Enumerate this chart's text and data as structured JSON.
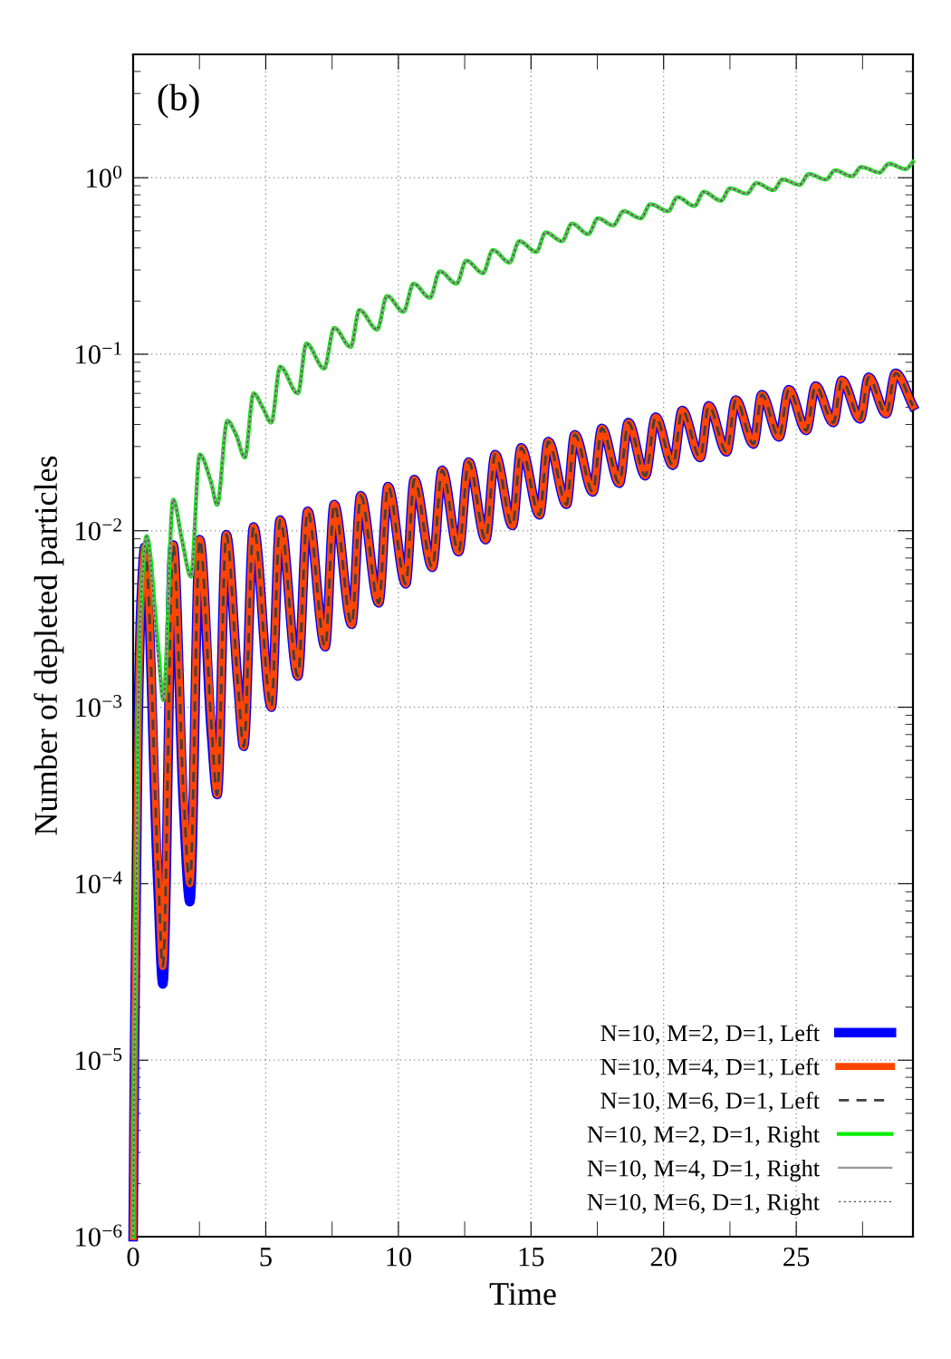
{
  "chart_data": {
    "type": "line",
    "xlabel": "Time",
    "ylabel": "Number of depleted particles",
    "annotations": [
      "(b)"
    ],
    "xlim": [
      0,
      29.4
    ],
    "xticks": [
      0,
      5,
      10,
      15,
      20,
      25
    ],
    "ylim": [
      1e-06,
      5
    ],
    "yticks": [
      {
        "value": 1e-06,
        "label": "10$^{−6}$"
      },
      {
        "value": 1e-05,
        "label": "10$^{−5}$"
      },
      {
        "value": 0.0001,
        "label": "10$^{−4}$"
      },
      {
        "value": 0.001,
        "label": "10$^{−3}$"
      },
      {
        "value": 0.01,
        "label": "10$^{−2}$"
      },
      {
        "value": 0.1,
        "label": "10$^{−1}$"
      },
      {
        "value": 1,
        "label": "10$^{0}$"
      }
    ],
    "log": "y",
    "grid": true,
    "legend": "bottom right",
    "line_style": "solid",
    "series": [
      {
        "name": "N=10, M=2, D=1, Left",
        "color": "#0000ff",
        "x": [
          0,
          0.05,
          0.12,
          0.2,
          0.3,
          0.44,
          0.93,
          1.12,
          1.51,
          1.9,
          2.14,
          2.51,
          2.95,
          3.17,
          3.51,
          3.95,
          4.17,
          4.54,
          5.21,
          5.54,
          6.21,
          6.58,
          7.24,
          7.58,
          8.24,
          8.58,
          9.26,
          9.61,
          10.28,
          10.6,
          11.28,
          11.65,
          12.27,
          12.65,
          13.29,
          13.65,
          14.3,
          14.63,
          15.32,
          15.65,
          16.34,
          16.65,
          17.33,
          17.67,
          18.33,
          18.67,
          19.31,
          19.7,
          20.35,
          20.7,
          21.38,
          21.7,
          22.37,
          22.72,
          23.39,
          23.7,
          24.35,
          24.72,
          25.38,
          25.73,
          26.4,
          26.72,
          27.41,
          27.73,
          28.39,
          28.74,
          29.4
        ],
        "values": [
          1e-06,
          1e-05,
          0.0001,
          0.001,
          0.004,
          0.0081,
          0.0001,
          2.7e-05,
          0.0083,
          0.00027,
          7.9e-05,
          0.0089,
          0.00071,
          0.00032,
          0.0095,
          0.00135,
          0.0006,
          0.0105,
          0.001,
          0.0115,
          0.0015,
          0.0129,
          0.0022,
          0.0141,
          0.00295,
          0.0158,
          0.0039,
          0.0178,
          0.005,
          0.0195,
          0.0062,
          0.022,
          0.0076,
          0.0245,
          0.0089,
          0.027,
          0.0107,
          0.0295,
          0.0123,
          0.032,
          0.0141,
          0.035,
          0.0166,
          0.038,
          0.0186,
          0.041,
          0.0205,
          0.044,
          0.0235,
          0.048,
          0.026,
          0.051,
          0.028,
          0.055,
          0.031,
          0.059,
          0.034,
          0.063,
          0.037,
          0.066,
          0.041,
          0.071,
          0.043,
          0.074,
          0.046,
          0.078,
          0.051
        ]
      },
      {
        "name": "N=10, M=4, D=1, Left",
        "color": "#ff4500",
        "x": [
          0,
          0.05,
          0.12,
          0.2,
          0.3,
          0.44,
          0.93,
          1.12,
          1.51,
          1.9,
          2.14,
          2.51,
          2.95,
          3.17,
          3.51,
          3.95,
          4.17,
          4.54,
          5.21,
          5.54,
          6.21,
          6.58,
          7.24,
          7.58,
          8.24,
          8.58,
          9.26,
          9.61,
          10.28,
          10.6,
          11.28,
          11.65,
          12.27,
          12.65,
          13.29,
          13.65,
          14.3,
          14.63,
          15.32,
          15.65,
          16.34,
          16.65,
          17.33,
          17.67,
          18.33,
          18.67,
          19.31,
          19.7,
          20.35,
          20.7,
          21.38,
          21.7,
          22.37,
          22.72,
          23.39,
          23.7,
          24.35,
          24.72,
          25.38,
          25.73,
          26.4,
          26.72,
          27.41,
          27.73,
          28.39,
          28.74,
          29.4
        ],
        "values": [
          1e-06,
          1e-05,
          0.0001,
          0.001,
          0.004,
          0.0081,
          0.00013,
          3.4e-05,
          0.0083,
          0.00032,
          0.0001,
          0.0089,
          0.00079,
          0.00032,
          0.0095,
          0.00135,
          0.0006,
          0.0105,
          0.001,
          0.0115,
          0.0015,
          0.0129,
          0.0022,
          0.0141,
          0.00295,
          0.0158,
          0.0039,
          0.0178,
          0.005,
          0.0195,
          0.0062,
          0.022,
          0.0076,
          0.0245,
          0.0089,
          0.027,
          0.0107,
          0.0295,
          0.0123,
          0.032,
          0.0141,
          0.035,
          0.0166,
          0.038,
          0.0186,
          0.041,
          0.0205,
          0.044,
          0.0235,
          0.048,
          0.026,
          0.051,
          0.028,
          0.055,
          0.031,
          0.059,
          0.034,
          0.063,
          0.037,
          0.066,
          0.041,
          0.071,
          0.043,
          0.074,
          0.046,
          0.078,
          0.051
        ]
      },
      {
        "name": "N=10, M=6, D=1, Left",
        "color": "#404040",
        "line_style": "dashed",
        "x": [
          0,
          0.05,
          0.12,
          0.2,
          0.3,
          0.44,
          0.93,
          1.12,
          1.51,
          1.9,
          2.14,
          2.51,
          2.95,
          3.17,
          3.51,
          3.95,
          4.17,
          4.54,
          5.21,
          5.54,
          6.21,
          6.58,
          7.24,
          7.58,
          8.24,
          8.58,
          9.26,
          9.61,
          10.28,
          10.6,
          11.28,
          11.65,
          12.27,
          12.65,
          13.29,
          13.65,
          14.3,
          14.63,
          15.32,
          15.65,
          16.34,
          16.65,
          17.33,
          17.67,
          18.33,
          18.67,
          19.31,
          19.7,
          20.35,
          20.7,
          21.38,
          21.7,
          22.37,
          22.72,
          23.39,
          23.7,
          24.35,
          24.72,
          25.38,
          25.73,
          26.4,
          26.72,
          27.41,
          27.73,
          28.39,
          28.74,
          29.4
        ],
        "values": [
          1e-06,
          1e-05,
          0.0001,
          0.001,
          0.004,
          0.0081,
          0.00013,
          3.4e-05,
          0.0083,
          0.00032,
          0.0001,
          0.0089,
          0.00079,
          0.00032,
          0.0095,
          0.00135,
          0.0006,
          0.0105,
          0.001,
          0.0115,
          0.0015,
          0.0129,
          0.0022,
          0.0141,
          0.00295,
          0.0158,
          0.0039,
          0.0178,
          0.005,
          0.0195,
          0.0062,
          0.022,
          0.0076,
          0.0245,
          0.0089,
          0.027,
          0.0107,
          0.0295,
          0.0123,
          0.032,
          0.0141,
          0.035,
          0.0166,
          0.038,
          0.0186,
          0.041,
          0.0205,
          0.044,
          0.0235,
          0.048,
          0.026,
          0.051,
          0.028,
          0.055,
          0.031,
          0.059,
          0.034,
          0.063,
          0.037,
          0.066,
          0.041,
          0.071,
          0.043,
          0.074,
          0.046,
          0.078,
          0.051
        ]
      },
      {
        "name": "N=10, M=2, D=1, Right",
        "color": "#00ee00",
        "x": [
          0,
          0.05,
          0.12,
          0.2,
          0.3,
          0.51,
          0.93,
          1.14,
          1.51,
          1.84,
          2.18,
          2.51,
          2.93,
          3.17,
          3.55,
          3.88,
          4.21,
          4.54,
          4.88,
          5.21,
          5.54,
          6.21,
          6.53,
          7.2,
          7.58,
          8.2,
          8.53,
          9.2,
          9.57,
          10.19,
          10.57,
          11.19,
          11.56,
          12.19,
          12.56,
          13.19,
          13.56,
          14.19,
          14.56,
          15.2,
          15.55,
          16.17,
          16.54,
          17.16,
          17.52,
          18.1,
          18.49,
          19.14,
          19.5,
          20.17,
          20.52,
          21.16,
          21.51,
          22.16,
          22.5,
          23.14,
          23.49,
          24.14,
          24.48,
          25.13,
          25.47,
          26.12,
          26.46,
          27.1,
          27.45,
          28.14,
          28.49,
          29.13,
          29.4
        ],
        "values": [
          1e-06,
          1e-05,
          0.0001,
          0.001,
          0.004,
          0.0093,
          0.0023,
          0.0011,
          0.015,
          0.0089,
          0.0055,
          0.027,
          0.019,
          0.014,
          0.042,
          0.035,
          0.026,
          0.06,
          0.05,
          0.041,
          0.085,
          0.06,
          0.115,
          0.083,
          0.141,
          0.11,
          0.178,
          0.138,
          0.214,
          0.174,
          0.251,
          0.209,
          0.295,
          0.251,
          0.339,
          0.288,
          0.389,
          0.331,
          0.437,
          0.38,
          0.49,
          0.437,
          0.55,
          0.479,
          0.589,
          0.537,
          0.646,
          0.589,
          0.708,
          0.646,
          0.776,
          0.692,
          0.832,
          0.741,
          0.871,
          0.813,
          0.933,
          0.851,
          0.977,
          0.912,
          1.05,
          0.977,
          1.1,
          1.02,
          1.15,
          1.07,
          1.2,
          1.12,
          1.23
        ]
      },
      {
        "name": "N=10, M=4, D=1, Right",
        "color": "#999999",
        "x": [
          0,
          0.05,
          0.12,
          0.2,
          0.3,
          0.51,
          0.93,
          1.14,
          1.51,
          1.84,
          2.18,
          2.51,
          2.93,
          3.17,
          3.55,
          3.88,
          4.21,
          4.54,
          4.88,
          5.21,
          5.54,
          6.21,
          6.53,
          7.2,
          7.58,
          8.2,
          8.53,
          9.2,
          9.57,
          10.19,
          10.57,
          11.19,
          11.56,
          12.19,
          12.56,
          13.19,
          13.56,
          14.19,
          14.56,
          15.2,
          15.55,
          16.17,
          16.54,
          17.16,
          17.52,
          18.1,
          18.49,
          19.14,
          19.5,
          20.17,
          20.52,
          21.16,
          21.51,
          22.16,
          22.5,
          23.14,
          23.49,
          24.14,
          24.48,
          25.13,
          25.47,
          26.12,
          26.46,
          27.1,
          27.45,
          28.14,
          28.49,
          29.13,
          29.4
        ],
        "values": [
          1e-06,
          1e-05,
          0.0001,
          0.001,
          0.004,
          0.0093,
          0.002,
          0.0011,
          0.015,
          0.0089,
          0.0055,
          0.027,
          0.019,
          0.014,
          0.042,
          0.035,
          0.026,
          0.06,
          0.05,
          0.041,
          0.085,
          0.06,
          0.115,
          0.083,
          0.141,
          0.11,
          0.178,
          0.138,
          0.214,
          0.174,
          0.251,
          0.209,
          0.295,
          0.251,
          0.339,
          0.288,
          0.389,
          0.331,
          0.437,
          0.38,
          0.49,
          0.437,
          0.55,
          0.479,
          0.589,
          0.537,
          0.646,
          0.589,
          0.708,
          0.646,
          0.776,
          0.692,
          0.832,
          0.741,
          0.871,
          0.813,
          0.933,
          0.851,
          0.977,
          0.912,
          1.05,
          0.977,
          1.1,
          1.02,
          1.15,
          1.07,
          1.2,
          1.12,
          1.23
        ]
      },
      {
        "name": "N=10, M=6, D=1, Right",
        "color": "#404040",
        "line_style": "dotted",
        "x": [
          0,
          0.05,
          0.12,
          0.2,
          0.3,
          0.51,
          0.93,
          1.14,
          1.51,
          1.84,
          2.18,
          2.51,
          2.93,
          3.17,
          3.55,
          3.88,
          4.21,
          4.54,
          4.88,
          5.21,
          5.54,
          6.21,
          6.53,
          7.2,
          7.58,
          8.2,
          8.53,
          9.2,
          9.57,
          10.19,
          10.57,
          11.19,
          11.56,
          12.19,
          12.56,
          13.19,
          13.56,
          14.19,
          14.56,
          15.2,
          15.55,
          16.17,
          16.54,
          17.16,
          17.52,
          18.1,
          18.49,
          19.14,
          19.5,
          20.17,
          20.52,
          21.16,
          21.51,
          22.16,
          22.5,
          23.14,
          23.49,
          24.14,
          24.48,
          25.13,
          25.47,
          26.12,
          26.46,
          27.1,
          27.45,
          28.14,
          28.49,
          29.13,
          29.4
        ],
        "values": [
          1e-06,
          1e-05,
          0.0001,
          0.001,
          0.004,
          0.0093,
          0.002,
          0.0011,
          0.015,
          0.0089,
          0.0055,
          0.027,
          0.019,
          0.014,
          0.042,
          0.035,
          0.026,
          0.06,
          0.05,
          0.041,
          0.085,
          0.06,
          0.115,
          0.083,
          0.141,
          0.11,
          0.178,
          0.138,
          0.214,
          0.174,
          0.251,
          0.209,
          0.295,
          0.251,
          0.339,
          0.288,
          0.389,
          0.331,
          0.437,
          0.38,
          0.49,
          0.437,
          0.55,
          0.479,
          0.589,
          0.537,
          0.646,
          0.589,
          0.708,
          0.646,
          0.776,
          0.692,
          0.832,
          0.741,
          0.871,
          0.813,
          0.933,
          0.851,
          0.977,
          0.912,
          1.05,
          0.977,
          1.1,
          1.02,
          1.15,
          1.07,
          1.2,
          1.12,
          1.23
        ]
      }
    ]
  }
}
